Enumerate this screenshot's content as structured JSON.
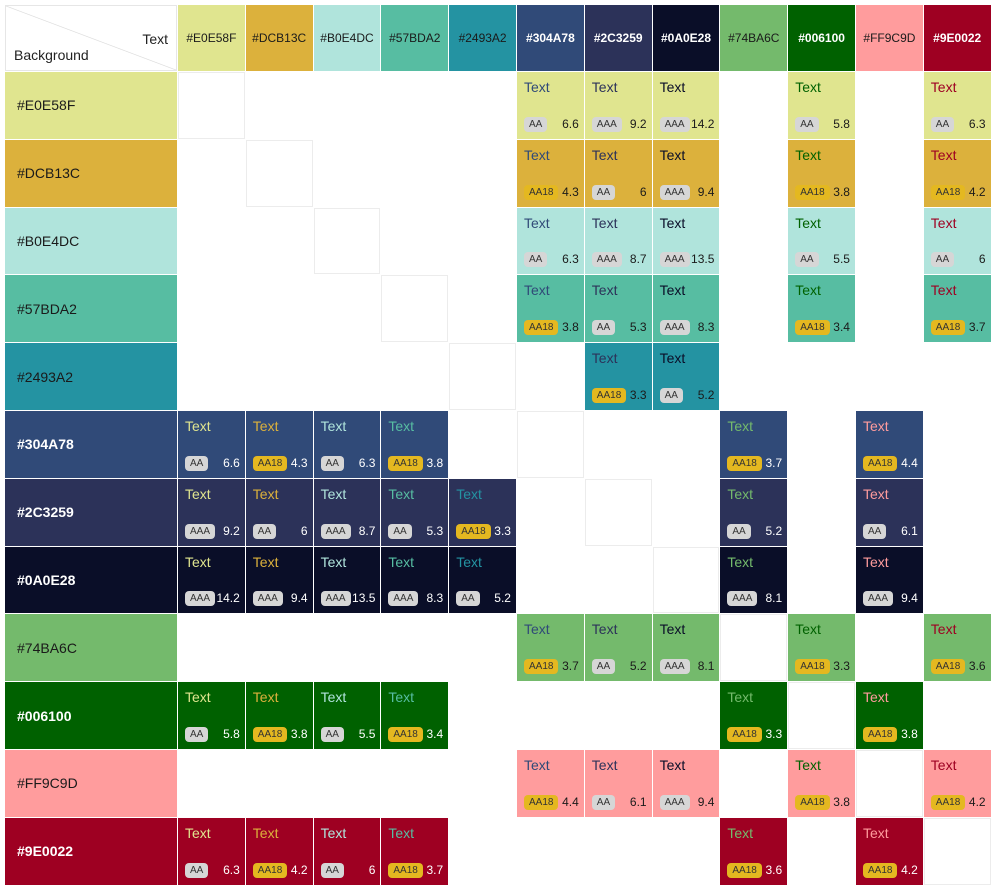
{
  "header": {
    "text_label": "Text",
    "background_label": "Background"
  },
  "sample_text": "Text",
  "colors": [
    {
      "hex": "#E0E58F",
      "label": "#E0E58F",
      "dark": false
    },
    {
      "hex": "#DCB13C",
      "label": "#DCB13C",
      "dark": false
    },
    {
      "hex": "#B0E4DC",
      "label": "#B0E4DC",
      "dark": false
    },
    {
      "hex": "#57BDA2",
      "label": "#57BDA2",
      "dark": false
    },
    {
      "hex": "#2493A2",
      "label": "#2493A2",
      "dark": false
    },
    {
      "hex": "#304A78",
      "label": "#304A78",
      "dark": true
    },
    {
      "hex": "#2C3259",
      "label": "#2C3259",
      "dark": true
    },
    {
      "hex": "#0A0E28",
      "label": "#0A0E28",
      "dark": true
    },
    {
      "hex": "#74BA6C",
      "label": "#74BA6C",
      "dark": false
    },
    {
      "hex": "#006100",
      "label": "#006100",
      "dark": true
    },
    {
      "hex": "#FF9C9D",
      "label": "#FF9C9D",
      "dark": false
    },
    {
      "hex": "#9E0022",
      "label": "#9E0022",
      "dark": true
    }
  ],
  "rows": [
    {
      "bg": 0,
      "cells": [
        {
          "fg": 5,
          "rating": "AA",
          "ratio": "6.6"
        },
        {
          "fg": 6,
          "rating": "AAA",
          "ratio": "9.2"
        },
        {
          "fg": 7,
          "rating": "AAA",
          "ratio": "14.2"
        },
        {
          "fg": 9,
          "rating": "AA",
          "ratio": "5.8"
        },
        {
          "fg": 11,
          "rating": "AA",
          "ratio": "6.3"
        }
      ]
    },
    {
      "bg": 1,
      "cells": [
        {
          "fg": 5,
          "rating": "AA18",
          "ratio": "4.3"
        },
        {
          "fg": 6,
          "rating": "AA",
          "ratio": "6"
        },
        {
          "fg": 7,
          "rating": "AAA",
          "ratio": "9.4"
        },
        {
          "fg": 9,
          "rating": "AA18",
          "ratio": "3.8"
        },
        {
          "fg": 11,
          "rating": "AA18",
          "ratio": "4.2"
        }
      ]
    },
    {
      "bg": 2,
      "cells": [
        {
          "fg": 5,
          "rating": "AA",
          "ratio": "6.3"
        },
        {
          "fg": 6,
          "rating": "AAA",
          "ratio": "8.7"
        },
        {
          "fg": 7,
          "rating": "AAA",
          "ratio": "13.5"
        },
        {
          "fg": 9,
          "rating": "AA",
          "ratio": "5.5"
        },
        {
          "fg": 11,
          "rating": "AA",
          "ratio": "6"
        }
      ]
    },
    {
      "bg": 3,
      "cells": [
        {
          "fg": 5,
          "rating": "AA18",
          "ratio": "3.8"
        },
        {
          "fg": 6,
          "rating": "AA",
          "ratio": "5.3"
        },
        {
          "fg": 7,
          "rating": "AAA",
          "ratio": "8.3"
        },
        {
          "fg": 9,
          "rating": "AA18",
          "ratio": "3.4"
        },
        {
          "fg": 11,
          "rating": "AA18",
          "ratio": "3.7"
        }
      ]
    },
    {
      "bg": 4,
      "cells": [
        {
          "fg": 6,
          "rating": "AA18",
          "ratio": "3.3"
        },
        {
          "fg": 7,
          "rating": "AA",
          "ratio": "5.2"
        }
      ]
    },
    {
      "bg": 5,
      "cells": [
        {
          "fg": 0,
          "rating": "AA",
          "ratio": "6.6"
        },
        {
          "fg": 1,
          "rating": "AA18",
          "ratio": "4.3"
        },
        {
          "fg": 2,
          "rating": "AA",
          "ratio": "6.3"
        },
        {
          "fg": 3,
          "rating": "AA18",
          "ratio": "3.8"
        },
        {
          "fg": 8,
          "rating": "AA18",
          "ratio": "3.7"
        },
        {
          "fg": 10,
          "rating": "AA18",
          "ratio": "4.4"
        }
      ]
    },
    {
      "bg": 6,
      "cells": [
        {
          "fg": 0,
          "rating": "AAA",
          "ratio": "9.2"
        },
        {
          "fg": 1,
          "rating": "AA",
          "ratio": "6"
        },
        {
          "fg": 2,
          "rating": "AAA",
          "ratio": "8.7"
        },
        {
          "fg": 3,
          "rating": "AA",
          "ratio": "5.3"
        },
        {
          "fg": 4,
          "rating": "AA18",
          "ratio": "3.3"
        },
        {
          "fg": 8,
          "rating": "AA",
          "ratio": "5.2"
        },
        {
          "fg": 10,
          "rating": "AA",
          "ratio": "6.1"
        }
      ]
    },
    {
      "bg": 7,
      "cells": [
        {
          "fg": 0,
          "rating": "AAA",
          "ratio": "14.2"
        },
        {
          "fg": 1,
          "rating": "AAA",
          "ratio": "9.4"
        },
        {
          "fg": 2,
          "rating": "AAA",
          "ratio": "13.5"
        },
        {
          "fg": 3,
          "rating": "AAA",
          "ratio": "8.3"
        },
        {
          "fg": 4,
          "rating": "AA",
          "ratio": "5.2"
        },
        {
          "fg": 8,
          "rating": "AAA",
          "ratio": "8.1"
        },
        {
          "fg": 10,
          "rating": "AAA",
          "ratio": "9.4"
        }
      ]
    },
    {
      "bg": 8,
      "cells": [
        {
          "fg": 5,
          "rating": "AA18",
          "ratio": "3.7"
        },
        {
          "fg": 6,
          "rating": "AA",
          "ratio": "5.2"
        },
        {
          "fg": 7,
          "rating": "AAA",
          "ratio": "8.1"
        },
        {
          "fg": 9,
          "rating": "AA18",
          "ratio": "3.3"
        },
        {
          "fg": 11,
          "rating": "AA18",
          "ratio": "3.6"
        }
      ]
    },
    {
      "bg": 9,
      "cells": [
        {
          "fg": 0,
          "rating": "AA",
          "ratio": "5.8"
        },
        {
          "fg": 1,
          "rating": "AA18",
          "ratio": "3.8"
        },
        {
          "fg": 2,
          "rating": "AA",
          "ratio": "5.5"
        },
        {
          "fg": 3,
          "rating": "AA18",
          "ratio": "3.4"
        },
        {
          "fg": 8,
          "rating": "AA18",
          "ratio": "3.3"
        },
        {
          "fg": 10,
          "rating": "AA18",
          "ratio": "3.8"
        }
      ]
    },
    {
      "bg": 10,
      "cells": [
        {
          "fg": 5,
          "rating": "AA18",
          "ratio": "4.4"
        },
        {
          "fg": 6,
          "rating": "AA",
          "ratio": "6.1"
        },
        {
          "fg": 7,
          "rating": "AAA",
          "ratio": "9.4"
        },
        {
          "fg": 9,
          "rating": "AA18",
          "ratio": "3.8"
        },
        {
          "fg": 11,
          "rating": "AA18",
          "ratio": "4.2"
        }
      ]
    },
    {
      "bg": 11,
      "cells": [
        {
          "fg": 0,
          "rating": "AA",
          "ratio": "6.3"
        },
        {
          "fg": 1,
          "rating": "AA18",
          "ratio": "4.2"
        },
        {
          "fg": 2,
          "rating": "AA",
          "ratio": "6"
        },
        {
          "fg": 3,
          "rating": "AA18",
          "ratio": "3.7"
        },
        {
          "fg": 8,
          "rating": "AA18",
          "ratio": "3.6"
        },
        {
          "fg": 10,
          "rating": "AA18",
          "ratio": "4.2"
        }
      ]
    }
  ]
}
